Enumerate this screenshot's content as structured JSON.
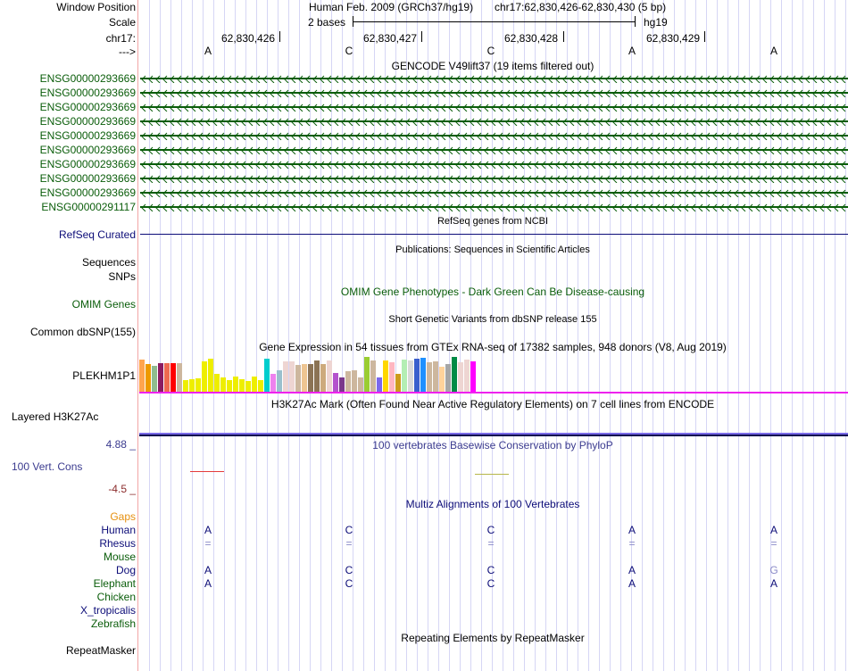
{
  "header": {
    "window_position_label": "Window Position",
    "scale_label": "Scale",
    "chrom_label": "chr17:",
    "strand_label": "--->",
    "assembly_title": "Human Feb. 2009 (GRCh37/hg19)",
    "position": "chr17:62,830,426-62,830,430 (5 bp)",
    "scale_text": "2 bases",
    "scale_db": "hg19",
    "coordinates": [
      "62,830,426",
      "62,830,427",
      "62,830,428",
      "62,830,429"
    ],
    "bases": [
      "A",
      "C",
      "C",
      "A",
      "A"
    ]
  },
  "gencode": {
    "title": "GENCODE V49lift37 (19 items filtered out)",
    "items": [
      "ENSG00000293669",
      "ENSG00000293669",
      "ENSG00000293669",
      "ENSG00000293669",
      "ENSG00000293669",
      "ENSG00000293669",
      "ENSG00000293669",
      "ENSG00000293669",
      "ENSG00000293669",
      "ENSG00000291117"
    ],
    "color": "#0a5d0a"
  },
  "refseq": {
    "title": "RefSeq genes from NCBI",
    "label": "RefSeq Curated",
    "color": "#0c0c78"
  },
  "publications": {
    "title": "Publications: Sequences in Scientific Articles",
    "labels": [
      "Sequences",
      "SNPs"
    ]
  },
  "omim": {
    "title": "OMIM Gene Phenotypes - Dark Green Can Be Disease-causing",
    "label": "OMIM Genes"
  },
  "dbsnp": {
    "title": "Short Genetic Variants from dbSNP release 155",
    "label": "Common dbSNP(155)"
  },
  "gtex": {
    "title": "Gene Expression in 54 tissues from GTEx RNA-seq of 17382 samples, 948 donors (V8, Aug 2019)",
    "label": "PLEKHM1P1",
    "bars": [
      {
        "color": "#ffa54f",
        "v": 0.92
      },
      {
        "color": "#ee9a00",
        "v": 0.8
      },
      {
        "color": "#8fbc8f",
        "v": 0.75
      },
      {
        "color": "#8b1c62",
        "v": 0.82
      },
      {
        "color": "#ee6a50",
        "v": 0.82
      },
      {
        "color": "#ff0000",
        "v": 0.82
      },
      {
        "color": "#cdb79e",
        "v": 0.82
      },
      {
        "color": "#eeee00",
        "v": 0.35
      },
      {
        "color": "#eeee00",
        "v": 0.37
      },
      {
        "color": "#eeee00",
        "v": 0.4
      },
      {
        "color": "#eeee00",
        "v": 0.87
      },
      {
        "color": "#eeee00",
        "v": 0.95
      },
      {
        "color": "#eeee00",
        "v": 0.52
      },
      {
        "color": "#eeee00",
        "v": 0.42
      },
      {
        "color": "#eeee00",
        "v": 0.35
      },
      {
        "color": "#eeee00",
        "v": 0.44
      },
      {
        "color": "#eeee00",
        "v": 0.38
      },
      {
        "color": "#eeee00",
        "v": 0.33
      },
      {
        "color": "#eeee00",
        "v": 0.46
      },
      {
        "color": "#eeee00",
        "v": 0.35
      },
      {
        "color": "#00cdcd",
        "v": 0.95
      },
      {
        "color": "#ee82ee",
        "v": 0.52
      },
      {
        "color": "#9ac0cd",
        "v": 0.62
      },
      {
        "color": "#eed5d2",
        "v": 0.88
      },
      {
        "color": "#eed5d2",
        "v": 0.88
      },
      {
        "color": "#cdb79e",
        "v": 0.78
      },
      {
        "color": "#eec591",
        "v": 0.8
      },
      {
        "color": "#8b7355",
        "v": 0.8
      },
      {
        "color": "#8b7355",
        "v": 0.9
      },
      {
        "color": "#cdaa7d",
        "v": 0.8
      },
      {
        "color": "#eed5d2",
        "v": 0.9
      },
      {
        "color": "#b452cd",
        "v": 0.55
      },
      {
        "color": "#7a378b",
        "v": 0.42
      },
      {
        "color": "#cdb79e",
        "v": 0.6
      },
      {
        "color": "#cdb79e",
        "v": 0.62
      },
      {
        "color": "#cdb79e",
        "v": 0.42
      },
      {
        "color": "#9acd32",
        "v": 1.0
      },
      {
        "color": "#cdb79e",
        "v": 0.9
      },
      {
        "color": "#7b68ee",
        "v": 0.42
      },
      {
        "color": "#ffd700",
        "v": 0.9
      },
      {
        "color": "#ffb6c1",
        "v": 0.85
      },
      {
        "color": "#cd9b1d",
        "v": 0.52
      },
      {
        "color": "#b4eeb4",
        "v": 0.92
      },
      {
        "color": "#d9d9d9",
        "v": 0.9
      },
      {
        "color": "#3a5fcd",
        "v": 0.95
      },
      {
        "color": "#1e90ff",
        "v": 0.98
      },
      {
        "color": "#cdb79e",
        "v": 0.85
      },
      {
        "color": "#cdb79e",
        "v": 0.88
      },
      {
        "color": "#ffd39b",
        "v": 0.72
      },
      {
        "color": "#a6a6a6",
        "v": 0.8
      },
      {
        "color": "#008b45",
        "v": 1.0
      },
      {
        "color": "#eed5d2",
        "v": 0.85
      },
      {
        "color": "#eed5d2",
        "v": 0.92
      },
      {
        "color": "#ff00ff",
        "v": 0.88
      }
    ]
  },
  "h3k27ac": {
    "title": "H3K27Ac Mark (Often Found Near Active Regulatory Elements) on 7 cell lines from ENCODE",
    "label": "Layered H3K27Ac"
  },
  "phylop": {
    "title": "100 vertebrates Basewise Conservation by PhyloP",
    "label": "100 Vert. Cons",
    "max_label": "4.88 _",
    "min_label": "-4.5 _"
  },
  "multiz": {
    "title": "Multiz Alignments of 100 Vertebrates",
    "gaps_label": "Gaps",
    "species": [
      {
        "name": "Human",
        "cls": "navy",
        "bases": [
          "A",
          "C",
          "C",
          "A",
          "A"
        ]
      },
      {
        "name": "Rhesus",
        "cls": "navy",
        "bases": [
          "=",
          "=",
          "=",
          "=",
          "="
        ]
      },
      {
        "name": "Mouse",
        "cls": "green",
        "bases": [
          "",
          "",
          "",
          "",
          ""
        ]
      },
      {
        "name": "Dog",
        "cls": "navy",
        "bases": [
          "A",
          "C",
          "C",
          "A",
          "G"
        ]
      },
      {
        "name": "Elephant",
        "cls": "green",
        "bases": [
          "A",
          "C",
          "C",
          "A",
          "A"
        ]
      },
      {
        "name": "Chicken",
        "cls": "green",
        "bases": [
          "",
          "",
          "",
          "",
          ""
        ]
      },
      {
        "name": "X_tropicalis",
        "cls": "navy",
        "bases": [
          "",
          "",
          "",
          "",
          ""
        ]
      },
      {
        "name": "Zebrafish",
        "cls": "green",
        "bases": [
          "",
          "",
          "",
          "",
          ""
        ]
      }
    ]
  },
  "repeatmasker": {
    "title": "Repeating Elements by RepeatMasker",
    "label": "RepeatMasker"
  }
}
